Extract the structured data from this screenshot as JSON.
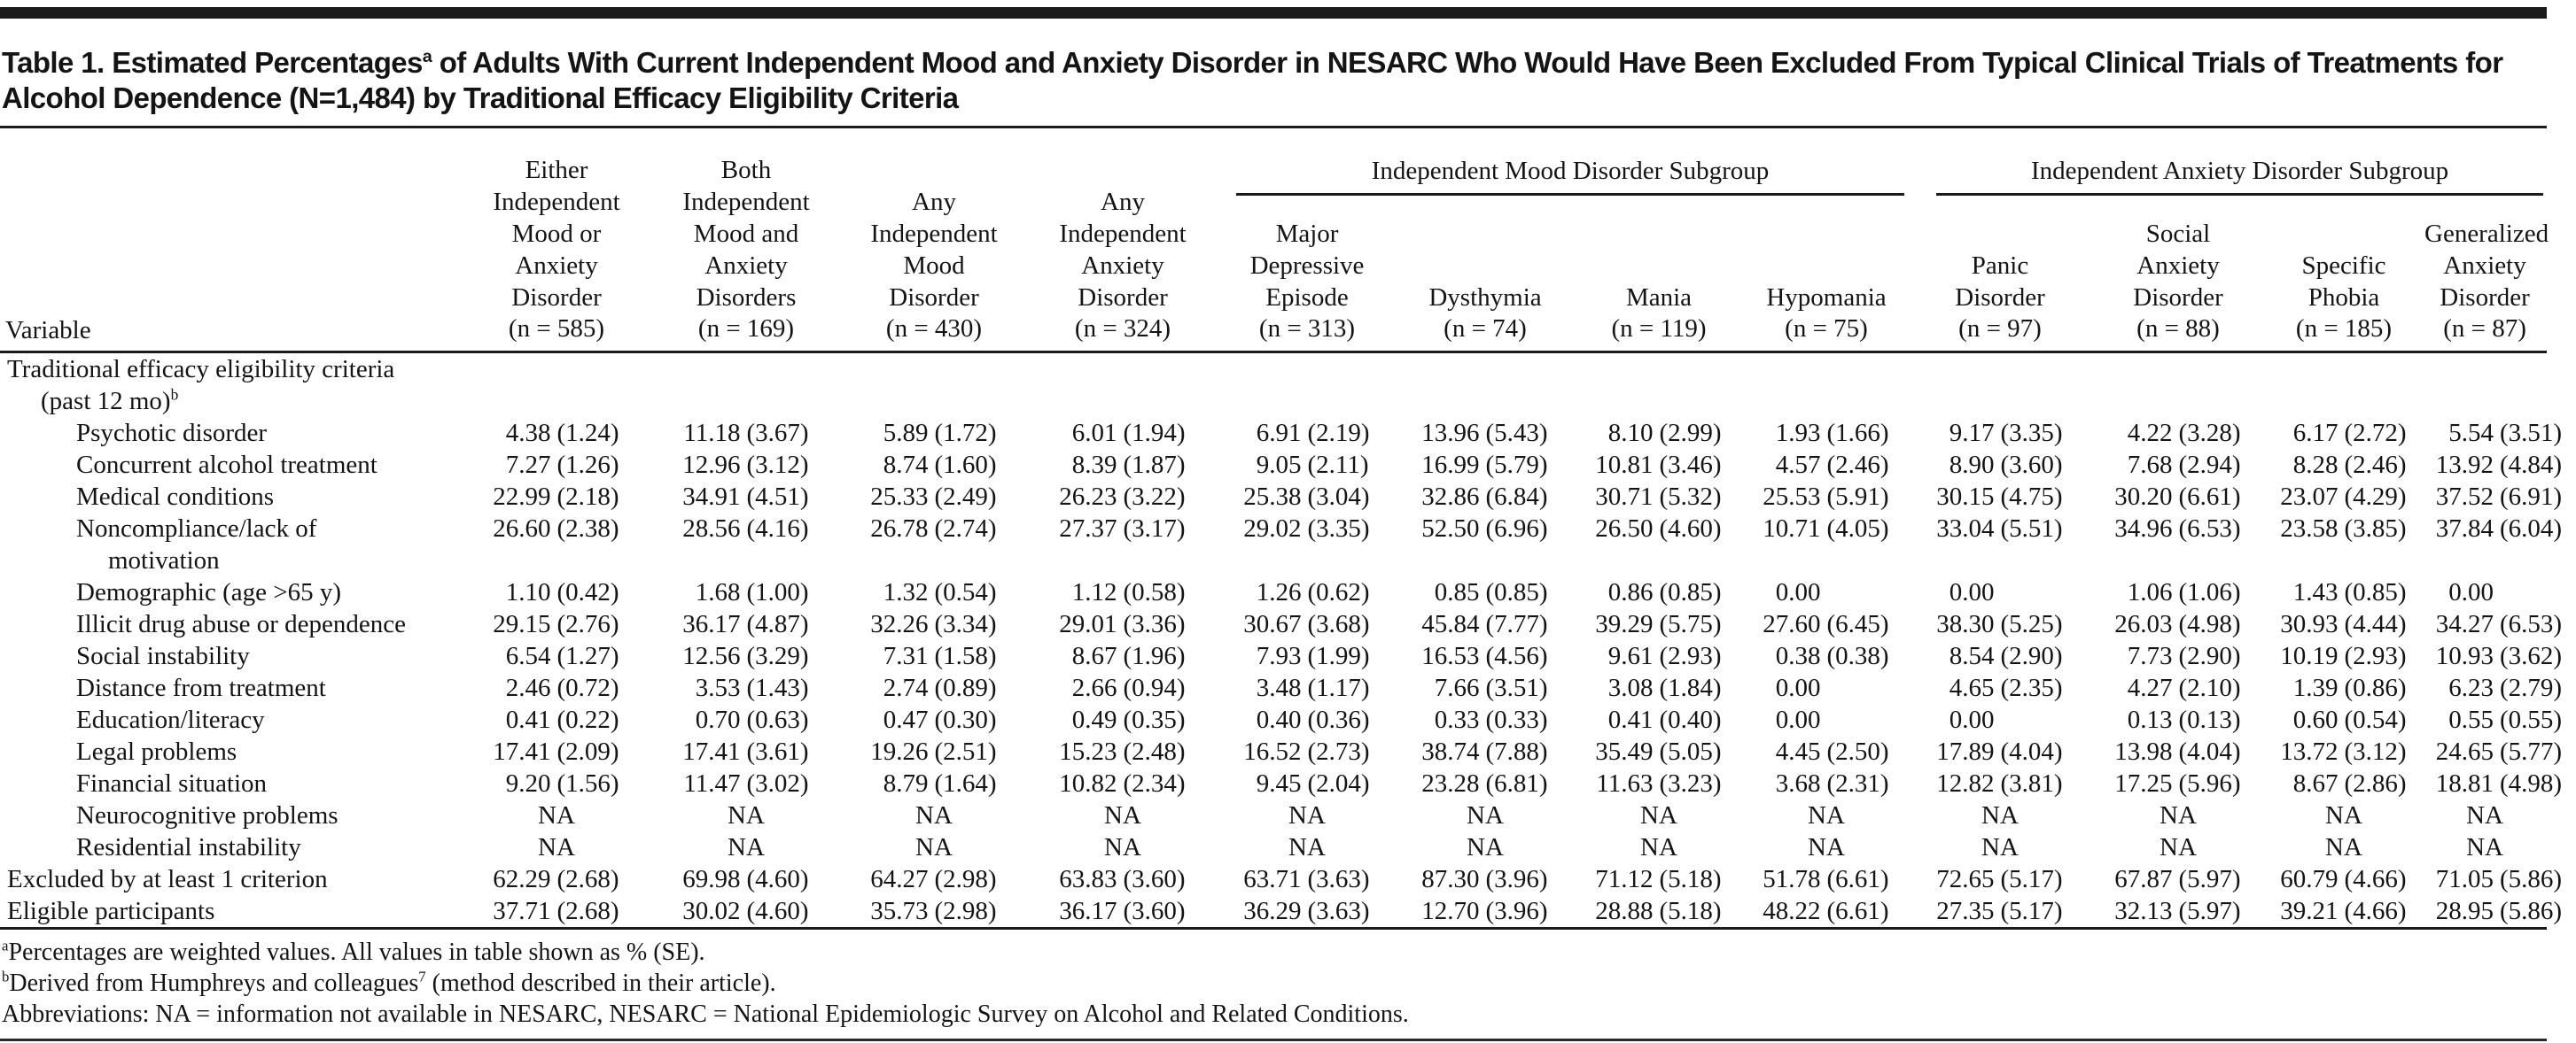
{
  "title_segments": [
    {
      "t": "Table 1. Estimated Percentages"
    },
    {
      "t": "a",
      "sup": true
    },
    {
      "t": " of Adults With Current Independent Mood and Anxiety Disorder in NESARC Who Would Have Been Excluded From Typical Clinical Trials of Treatments for Alcohol Dependence (N=1,484) by Traditional Efficacy Eligibility Criteria"
    }
  ],
  "table": {
    "variable_header": "Variable",
    "top_columns": [
      "Either\nIndependent\nMood or\nAnxiety\nDisorder\n(n = 585)",
      "Both\nIndependent\nMood and\nAnxiety\nDisorders\n(n = 169)",
      "Any\nIndependent\nMood\nDisorder\n(n = 430)",
      "Any\nIndependent\nAnxiety\nDisorder\n(n = 324)"
    ],
    "groups": [
      {
        "label": "Independent Mood Disorder Subgroup",
        "columns": [
          "Major\nDepressive\nEpisode\n(n = 313)",
          "Dysthymia\n(n = 74)",
          "Mania\n(n = 119)",
          "Hypomania\n(n = 75)"
        ]
      },
      {
        "label": "Independent Anxiety Disorder Subgroup",
        "columns": [
          "Panic\nDisorder\n(n = 97)",
          "Social\nAnxiety\nDisorder\n(n = 88)",
          "Specific\nPhobia\n(n = 185)",
          "Generalized\nAnxiety\nDisorder\n(n = 87)"
        ]
      }
    ],
    "rows": [
      {
        "lines": [
          {
            "t": "Traditional efficacy eligibility criteria",
            "ind": 0
          },
          {
            "t": "(past 12 mo)",
            "sup": "b",
            "ind": 1
          }
        ],
        "values": []
      },
      {
        "lines": [
          {
            "t": "Psychotic disorder",
            "ind": 2
          }
        ],
        "values": [
          "4.38 (1.24)",
          "11.18 (3.67)",
          "5.89 (1.72)",
          "6.01 (1.94)",
          "6.91 (2.19)",
          "13.96 (5.43)",
          "8.10 (2.99)",
          "1.93 (1.66)",
          "9.17 (3.35)",
          "4.22 (3.28)",
          "6.17 (2.72)",
          "5.54 (3.51)"
        ]
      },
      {
        "lines": [
          {
            "t": "Concurrent alcohol treatment",
            "ind": 2
          }
        ],
        "values": [
          "7.27 (1.26)",
          "12.96 (3.12)",
          "8.74 (1.60)",
          "8.39 (1.87)",
          "9.05 (2.11)",
          "16.99 (5.79)",
          "10.81 (3.46)",
          "4.57 (2.46)",
          "8.90 (3.60)",
          "7.68 (2.94)",
          "8.28 (2.46)",
          "13.92 (4.84)"
        ]
      },
      {
        "lines": [
          {
            "t": "Medical conditions",
            "ind": 2
          }
        ],
        "values": [
          "22.99 (2.18)",
          "34.91 (4.51)",
          "25.33 (2.49)",
          "26.23 (3.22)",
          "25.38 (3.04)",
          "32.86 (6.84)",
          "30.71 (5.32)",
          "25.53 (5.91)",
          "30.15 (4.75)",
          "30.20 (6.61)",
          "23.07 (4.29)",
          "37.52 (6.91)"
        ]
      },
      {
        "lines": [
          {
            "t": "Noncompliance/lack of",
            "ind": 2
          },
          {
            "t": "motivation",
            "ind": 3
          }
        ],
        "values": [
          "26.60 (2.38)",
          "28.56 (4.16)",
          "26.78 (2.74)",
          "27.37 (3.17)",
          "29.02 (3.35)",
          "52.50 (6.96)",
          "26.50 (4.60)",
          "10.71 (4.05)",
          "33.04 (5.51)",
          "34.96 (6.53)",
          "23.58 (3.85)",
          "37.84 (6.04)"
        ]
      },
      {
        "lines": [
          {
            "t": "Demographic (age >65 y)",
            "ind": 2
          }
        ],
        "values": [
          "1.10 (0.42)",
          "1.68 (1.00)",
          "1.32 (0.54)",
          "1.12 (0.58)",
          "1.26 (0.62)",
          "0.85 (0.85)",
          "0.86 (0.85)",
          "0.00",
          "0.00",
          "1.06 (1.06)",
          "1.43 (0.85)",
          "0.00"
        ]
      },
      {
        "lines": [
          {
            "t": "Illicit drug abuse or dependence",
            "ind": 2
          }
        ],
        "values": [
          "29.15 (2.76)",
          "36.17 (4.87)",
          "32.26 (3.34)",
          "29.01 (3.36)",
          "30.67 (3.68)",
          "45.84 (7.77)",
          "39.29 (5.75)",
          "27.60 (6.45)",
          "38.30 (5.25)",
          "26.03 (4.98)",
          "30.93 (4.44)",
          "34.27 (6.53)"
        ]
      },
      {
        "lines": [
          {
            "t": "Social instability",
            "ind": 2
          }
        ],
        "values": [
          "6.54 (1.27)",
          "12.56 (3.29)",
          "7.31 (1.58)",
          "8.67 (1.96)",
          "7.93 (1.99)",
          "16.53 (4.56)",
          "9.61 (2.93)",
          "0.38 (0.38)",
          "8.54 (2.90)",
          "7.73 (2.90)",
          "10.19 (2.93)",
          "10.93 (3.62)"
        ]
      },
      {
        "lines": [
          {
            "t": "Distance from treatment",
            "ind": 2
          }
        ],
        "values": [
          "2.46 (0.72)",
          "3.53 (1.43)",
          "2.74 (0.89)",
          "2.66 (0.94)",
          "3.48 (1.17)",
          "7.66 (3.51)",
          "3.08 (1.84)",
          "0.00",
          "4.65 (2.35)",
          "4.27 (2.10)",
          "1.39 (0.86)",
          "6.23 (2.79)"
        ]
      },
      {
        "lines": [
          {
            "t": "Education/literacy",
            "ind": 2
          }
        ],
        "values": [
          "0.41 (0.22)",
          "0.70 (0.63)",
          "0.47 (0.30)",
          "0.49 (0.35)",
          "0.40 (0.36)",
          "0.33 (0.33)",
          "0.41 (0.40)",
          "0.00",
          "0.00",
          "0.13 (0.13)",
          "0.60 (0.54)",
          "0.55 (0.55)"
        ]
      },
      {
        "lines": [
          {
            "t": "Legal problems",
            "ind": 2
          }
        ],
        "values": [
          "17.41 (2.09)",
          "17.41 (3.61)",
          "19.26 (2.51)",
          "15.23 (2.48)",
          "16.52 (2.73)",
          "38.74 (7.88)",
          "35.49 (5.05)",
          "4.45 (2.50)",
          "17.89 (4.04)",
          "13.98 (4.04)",
          "13.72 (3.12)",
          "24.65 (5.77)"
        ]
      },
      {
        "lines": [
          {
            "t": "Financial situation",
            "ind": 2
          }
        ],
        "values": [
          "9.20 (1.56)",
          "11.47 (3.02)",
          "8.79 (1.64)",
          "10.82 (2.34)",
          "9.45 (2.04)",
          "23.28 (6.81)",
          "11.63 (3.23)",
          "3.68 (2.31)",
          "12.82 (3.81)",
          "17.25 (5.96)",
          "8.67 (2.86)",
          "18.81 (4.98)"
        ]
      },
      {
        "lines": [
          {
            "t": "Neurocognitive problems",
            "ind": 2
          }
        ],
        "values": [
          "NA",
          "NA",
          "NA",
          "NA",
          "NA",
          "NA",
          "NA",
          "NA",
          "NA",
          "NA",
          "NA",
          "NA"
        ]
      },
      {
        "lines": [
          {
            "t": "Residential instability",
            "ind": 2
          }
        ],
        "values": [
          "NA",
          "NA",
          "NA",
          "NA",
          "NA",
          "NA",
          "NA",
          "NA",
          "NA",
          "NA",
          "NA",
          "NA"
        ]
      },
      {
        "lines": [
          {
            "t": "Excluded by at least 1 criterion",
            "ind": 0
          }
        ],
        "values": [
          "62.29 (2.68)",
          "69.98 (4.60)",
          "64.27 (2.98)",
          "63.83 (3.60)",
          "63.71 (3.63)",
          "87.30 (3.96)",
          "71.12 (5.18)",
          "51.78 (6.61)",
          "72.65 (5.17)",
          "67.87 (5.97)",
          "60.79 (4.66)",
          "71.05 (5.86)"
        ]
      },
      {
        "lines": [
          {
            "t": "Eligible participants",
            "ind": 0
          }
        ],
        "values": [
          "37.71 (2.68)",
          "30.02 (4.60)",
          "35.73 (2.98)",
          "36.17 (3.60)",
          "36.29 (3.63)",
          "12.70 (3.96)",
          "28.88 (5.18)",
          "48.22 (6.61)",
          "27.35 (5.17)",
          "32.13 (5.97)",
          "39.21 (4.66)",
          "28.95 (5.86)"
        ]
      }
    ]
  },
  "footnotes": [
    [
      {
        "t": "a",
        "sup": true
      },
      {
        "t": "Percentages are weighted values. All values in table shown as % (SE)."
      }
    ],
    [
      {
        "t": "b",
        "sup": true
      },
      {
        "t": "Derived from Humphreys and colleagues"
      },
      {
        "t": "7",
        "sup": true
      },
      {
        "t": " (method described in their article)."
      }
    ],
    [
      {
        "t": "Abbreviations: NA = information not available in NESARC, NESARC = National Epidemiologic Survey on Alcohol and Related Conditions."
      }
    ]
  ]
}
